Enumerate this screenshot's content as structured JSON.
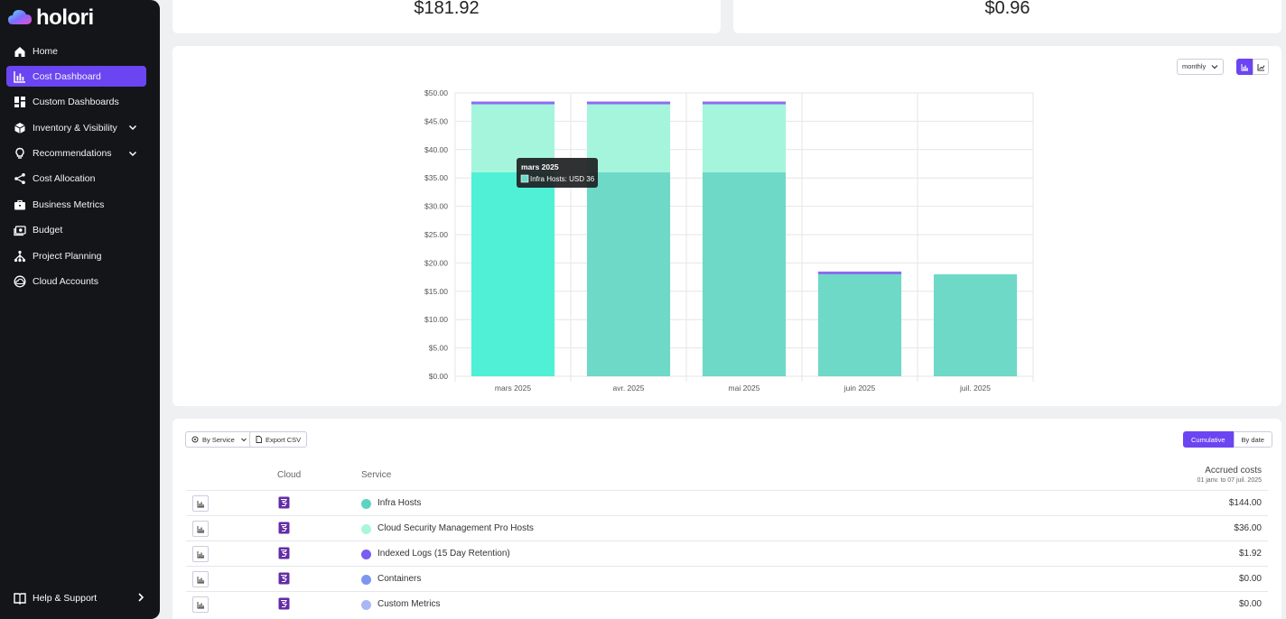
{
  "brand": {
    "name": "holori"
  },
  "sidebar": {
    "items": [
      {
        "label": "Home",
        "icon": "home-icon",
        "active": false,
        "expand": false
      },
      {
        "label": "Cost Dashboard",
        "icon": "bar-chart-icon",
        "active": true,
        "expand": false
      },
      {
        "label": "Custom Dashboards",
        "icon": "dashboard-icon",
        "active": false,
        "expand": false
      },
      {
        "label": "Inventory & Visibility",
        "icon": "box-icon",
        "active": false,
        "expand": true
      },
      {
        "label": "Recommendations",
        "icon": "lightbulb-icon",
        "active": false,
        "expand": true
      },
      {
        "label": "Cost Allocation",
        "icon": "share-icon",
        "active": false,
        "expand": false
      },
      {
        "label": "Business Metrics",
        "icon": "briefcase-icon",
        "active": false,
        "expand": false
      },
      {
        "label": "Budget",
        "icon": "cash-icon",
        "active": false,
        "expand": false
      },
      {
        "label": "Project Planning",
        "icon": "hierarchy-icon",
        "active": false,
        "expand": false
      },
      {
        "label": "Cloud Accounts",
        "icon": "cloud-icon",
        "active": false,
        "expand": false
      }
    ],
    "help_label": "Help & Support"
  },
  "kpis": {
    "left": "$181.92",
    "right": "$0.96"
  },
  "chart_controls": {
    "granularity": "monthly"
  },
  "chart_data": {
    "type": "bar",
    "stacked": true,
    "categories": [
      "mars 2025",
      "avr. 2025",
      "mai 2025",
      "juin 2025",
      "juil. 2025"
    ],
    "series": [
      {
        "name": "Infra Hosts",
        "color": "#6fd9c8",
        "values": [
          36,
          36,
          36,
          18,
          18
        ]
      },
      {
        "name": "Cloud Security Management Pro Hosts",
        "color": "#a5f5dc",
        "values": [
          12,
          12,
          12,
          0,
          0
        ]
      },
      {
        "name": "Indexed Logs (15 Day Retention)",
        "color": "#8a6cf0",
        "values": [
          0.48,
          0.48,
          0.48,
          0.48,
          0
        ]
      }
    ],
    "highlight_index": 0,
    "highlight_color": "#4ff0d6",
    "ylim": [
      0,
      50
    ],
    "yticks": [
      "$0.00",
      "$5.00",
      "$10.00",
      "$15.00",
      "$20.00",
      "$25.00",
      "$30.00",
      "$35.00",
      "$40.00",
      "$45.00",
      "$50.00"
    ],
    "tooltip": {
      "title": "mars 2025",
      "text": "Infra Hosts: USD 36"
    }
  },
  "table": {
    "group_by_label": "By Service",
    "export_label": "Export CSV",
    "mode_on": "Cumulative",
    "mode_off": "By date",
    "headers": {
      "cloud": "Cloud",
      "service": "Service",
      "accrued": "Accrued costs",
      "period": "01 janv. to 07 juil. 2025"
    },
    "rows": [
      {
        "service": "Infra Hosts",
        "color": "#5fd3c2",
        "amount": "$144.00"
      },
      {
        "service": "Cloud Security Management Pro Hosts",
        "color": "#a8f7d8",
        "amount": "$36.00"
      },
      {
        "service": "Indexed Logs (15 Day Retention)",
        "color": "#7a5cf0",
        "amount": "$1.92"
      },
      {
        "service": "Containers",
        "color": "#7b96f2",
        "amount": "$0.00"
      },
      {
        "service": "Custom Metrics",
        "color": "#aab6f5",
        "amount": "$0.00"
      }
    ]
  }
}
